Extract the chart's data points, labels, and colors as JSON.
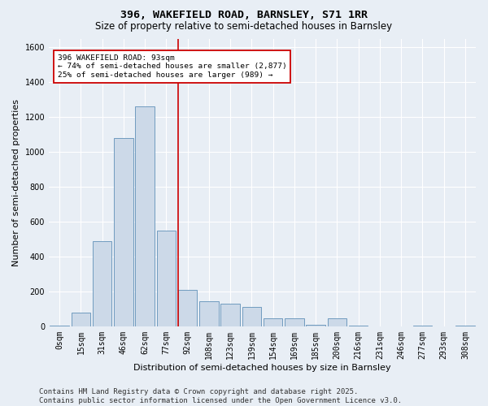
{
  "title1": "396, WAKEFIELD ROAD, BARNSLEY, S71 1RR",
  "title2": "Size of property relative to semi-detached houses in Barnsley",
  "xlabel": "Distribution of semi-detached houses by size in Barnsley",
  "ylabel": "Number of semi-detached properties",
  "categories": [
    "0sqm",
    "15sqm",
    "31sqm",
    "46sqm",
    "62sqm",
    "77sqm",
    "92sqm",
    "108sqm",
    "123sqm",
    "139sqm",
    "154sqm",
    "169sqm",
    "185sqm",
    "200sqm",
    "216sqm",
    "231sqm",
    "246sqm",
    "277sqm",
    "293sqm",
    "308sqm"
  ],
  "bar_values": [
    5,
    80,
    490,
    1080,
    1260,
    550,
    210,
    145,
    130,
    110,
    45,
    45,
    10,
    45,
    5,
    0,
    0,
    5,
    0,
    5
  ],
  "bar_color": "#ccd9e8",
  "bar_edge_color": "#6090b8",
  "ylim": [
    0,
    1650
  ],
  "yticks": [
    0,
    200,
    400,
    600,
    800,
    1000,
    1200,
    1400,
    1600
  ],
  "red_line_bin": 6,
  "annotation_text": "396 WAKEFIELD ROAD: 93sqm\n← 74% of semi-detached houses are smaller (2,877)\n25% of semi-detached houses are larger (989) →",
  "annotation_box_color": "#ffffff",
  "annotation_border_color": "#cc0000",
  "footer_line1": "Contains HM Land Registry data © Crown copyright and database right 2025.",
  "footer_line2": "Contains public sector information licensed under the Open Government Licence v3.0.",
  "background_color": "#e8eef5",
  "plot_background_color": "#e8eef5",
  "grid_color": "#ffffff",
  "title_fontsize": 9.5,
  "subtitle_fontsize": 8.5,
  "axis_label_fontsize": 8,
  "tick_fontsize": 7,
  "footer_fontsize": 6.5
}
